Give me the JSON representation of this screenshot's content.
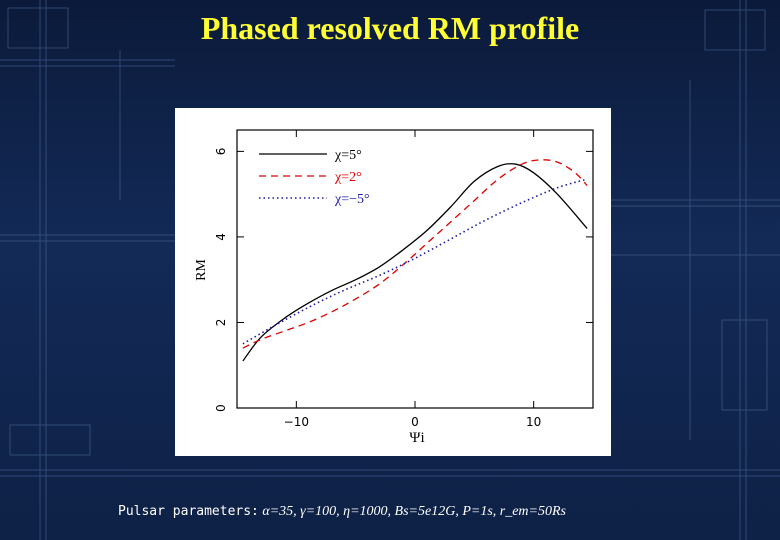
{
  "slide": {
    "title": "Phased resolved RM profile",
    "params_label": "Pulsar parameters:",
    "params_value": "α=35, γ=100, η=1000, Bs=5e12G, P=1s, r_em=50Rs"
  },
  "colors": {
    "background": "#0e2146",
    "title": "#ffff33",
    "chi_5": "#000000",
    "chi_2": "#dd0000",
    "chi_minus5": "#1a1aa0"
  },
  "chart_data": {
    "type": "line",
    "xlabel": "Ψi",
    "ylabel": "RM",
    "xlim": [
      -15,
      15
    ],
    "ylim": [
      0,
      6.5
    ],
    "xticks": [
      -10,
      0,
      10
    ],
    "yticks": [
      0,
      2,
      4,
      6
    ],
    "legend_position": "top-left",
    "grid": false,
    "series": [
      {
        "name": "χ=5°",
        "style": "solid",
        "color": "#000000",
        "x": [
          -14.5,
          -13,
          -11,
          -9,
          -7,
          -5,
          -3,
          -1,
          1,
          3,
          5,
          7,
          8.5,
          10,
          12,
          14.5
        ],
        "y": [
          1.1,
          1.65,
          2.1,
          2.45,
          2.75,
          3.0,
          3.3,
          3.7,
          4.15,
          4.7,
          5.3,
          5.65,
          5.7,
          5.5,
          5.0,
          4.2
        ]
      },
      {
        "name": "χ=2°",
        "style": "dashed",
        "color": "#dd0000",
        "x": [
          -14.5,
          -13,
          -11,
          -9,
          -7,
          -5,
          -3,
          -1,
          1,
          3,
          5,
          7,
          9,
          10.5,
          12,
          13.5,
          14.5
        ],
        "y": [
          1.4,
          1.6,
          1.8,
          2.0,
          2.25,
          2.55,
          2.9,
          3.35,
          3.85,
          4.35,
          4.85,
          5.35,
          5.7,
          5.8,
          5.75,
          5.5,
          5.2
        ]
      },
      {
        "name": "χ=−5°",
        "style": "dotted",
        "color": "#1a1aa0",
        "x": [
          -14.5,
          -12,
          -9,
          -6,
          -3,
          0,
          3,
          6,
          9,
          12,
          14.5
        ],
        "y": [
          1.5,
          1.9,
          2.35,
          2.75,
          3.1,
          3.5,
          3.95,
          4.4,
          4.8,
          5.15,
          5.35
        ]
      }
    ]
  }
}
